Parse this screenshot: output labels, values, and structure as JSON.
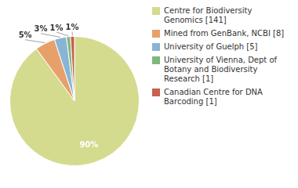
{
  "chart_data": {
    "type": "pie",
    "categories": [
      "Centre for Biodiversity\nGenomics [141]",
      "Mined from GenBank, NCBI [8]",
      "University of Guelph [5]",
      "University of Vienna, Dept of\nBotany and Biodiversity\nResearch [1]",
      "Canadian Centre for DNA\nBarcoding [1]"
    ],
    "values": [
      90,
      5,
      3,
      1,
      1
    ],
    "value_labels": [
      "90%",
      "5%",
      "3%",
      "1%",
      "1%"
    ],
    "colors": [
      "#d4db8e",
      "#e8a06a",
      "#8ab4d4",
      "#7db87d",
      "#c96050"
    ],
    "data_labels": true,
    "legend": "right"
  }
}
